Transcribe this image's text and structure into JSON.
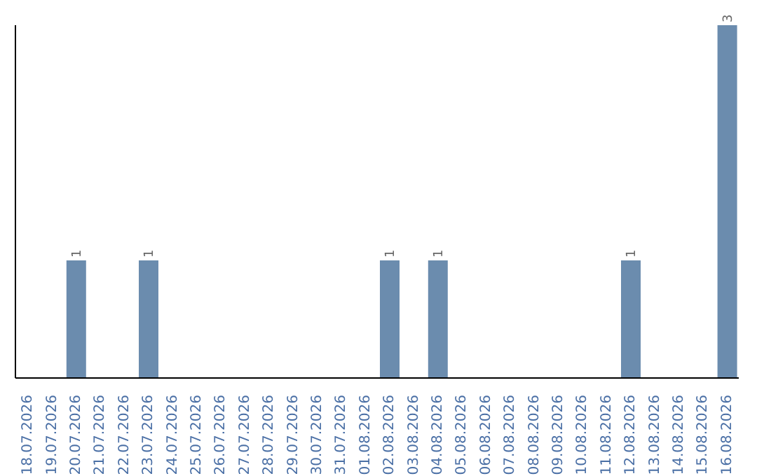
{
  "chart_data": {
    "type": "bar",
    "categories": [
      "18.07.2026",
      "19.07.2026",
      "20.07.2026",
      "21.07.2026",
      "22.07.2026",
      "23.07.2026",
      "24.07.2026",
      "25.07.2026",
      "26.07.2026",
      "27.07.2026",
      "28.07.2026",
      "29.07.2026",
      "30.07.2026",
      "31.07.2026",
      "01.08.2026",
      "02.08.2026",
      "03.08.2026",
      "04.08.2026",
      "05.08.2026",
      "06.08.2026",
      "07.08.2026",
      "08.08.2026",
      "09.08.2026",
      "10.08.2026",
      "11.08.2026",
      "12.08.2026",
      "13.08.2026",
      "14.08.2026",
      "15.08.2026",
      "16.08.2026"
    ],
    "values": [
      0,
      0,
      1,
      0,
      0,
      1,
      0,
      0,
      0,
      0,
      0,
      0,
      0,
      0,
      0,
      1,
      0,
      1,
      0,
      0,
      0,
      0,
      0,
      0,
      0,
      1,
      0,
      0,
      0,
      3
    ],
    "value_labels": [
      null,
      null,
      "1",
      null,
      null,
      "1",
      null,
      null,
      null,
      null,
      null,
      null,
      null,
      null,
      null,
      "1",
      null,
      "1",
      null,
      null,
      null,
      null,
      null,
      null,
      null,
      "1",
      null,
      null,
      null,
      "3"
    ],
    "color": "#6b8cae",
    "tick_labels": "x",
    "grid": false,
    "legend": false
  }
}
